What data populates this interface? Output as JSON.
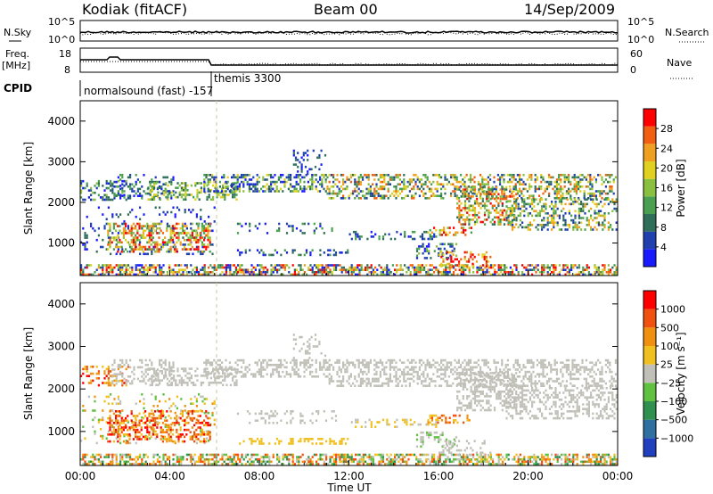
{
  "header": {
    "radar": "Kodiak (fitACF)",
    "beam": "Beam 00",
    "date": "14/Sep/2009"
  },
  "panels": {
    "nsky": {
      "label_left": "N.Sky",
      "label_right": "N.Search",
      "tick_top": "10^5",
      "tick_bottom": "10^0"
    },
    "freq": {
      "label_left": "Freq.",
      "unit_left": "[MHz]",
      "label_right": "Nave",
      "left_top": "18",
      "left_bottom": "8",
      "right_top": "60",
      "right_bottom": "0"
    },
    "cpid": {
      "label": "CPID",
      "segment1": "normalsound (fast) -157",
      "segment2": "themis 3300"
    }
  },
  "chart_data": [
    {
      "type": "heatmap",
      "name": "power",
      "ylabel": "Slant Range [km]",
      "ylim": [
        200,
        4500
      ],
      "yticks": [
        "1000",
        "2000",
        "3000",
        "4000"
      ],
      "colorbar": {
        "label": "Power [dB]",
        "ticks": [
          "28",
          "24",
          "20",
          "16",
          "12",
          "8",
          "4"
        ],
        "colors": [
          "#1a1aff",
          "#2040b0",
          "#2f6f5a",
          "#4aa050",
          "#8ac040",
          "#e0d020",
          "#f0a020",
          "#f06010",
          "#ff0000"
        ]
      }
    },
    {
      "type": "heatmap",
      "name": "velocity",
      "ylabel": "Slant Range [km]",
      "xlabel": "Time UT",
      "ylim": [
        200,
        4500
      ],
      "yticks": [
        "1000",
        "2000",
        "3000",
        "4000"
      ],
      "xticks": [
        "00:00",
        "04:00",
        "08:00",
        "12:00",
        "16:00",
        "20:00",
        "00:00"
      ],
      "colorbar": {
        "label": "Velocity [m s⁻¹]",
        "ticks": [
          "1000",
          "500",
          "100",
          "25",
          "−25",
          "−100",
          "−500",
          "−1000"
        ],
        "colors": [
          "#2040c0",
          "#3070a0",
          "#309050",
          "#60c040",
          "#c0c0b8",
          "#f0c020",
          "#f09010",
          "#f05010",
          "#ff0000"
        ]
      }
    }
  ]
}
